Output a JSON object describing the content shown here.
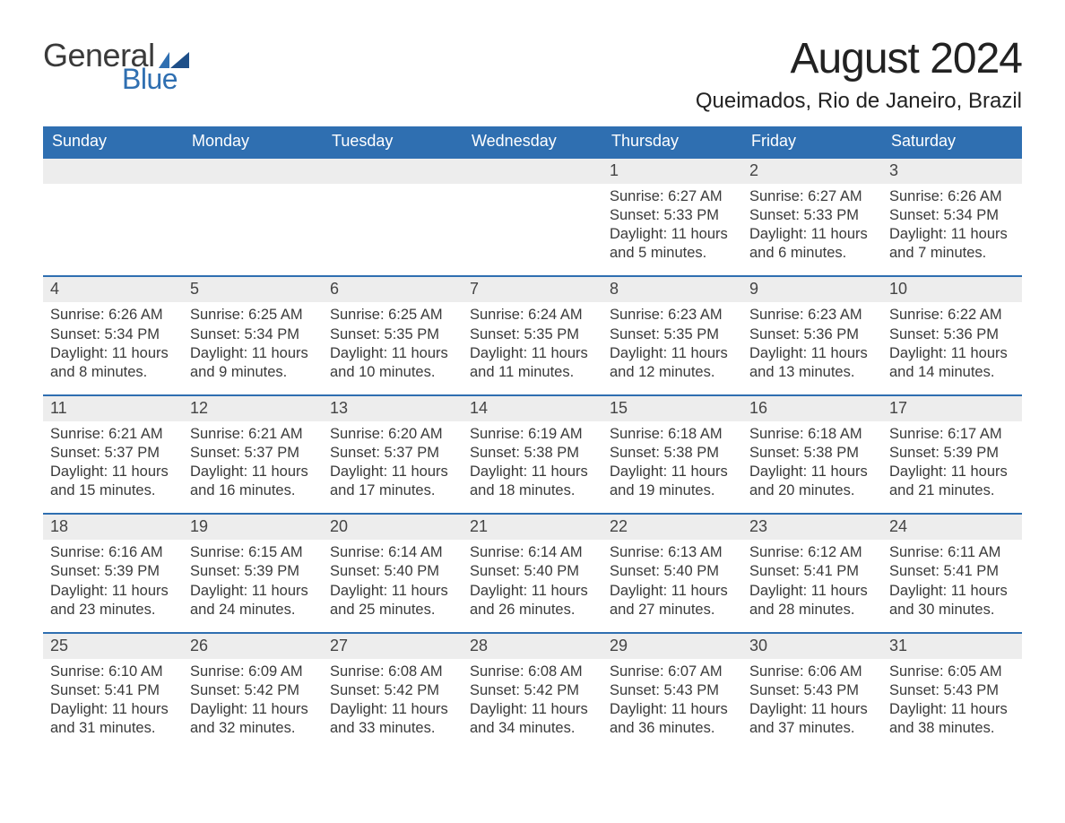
{
  "brand": {
    "word1": "General",
    "word2": "Blue"
  },
  "title": "August 2024",
  "location": "Queimados, Rio de Janeiro, Brazil",
  "weekdays": [
    "Sunday",
    "Monday",
    "Tuesday",
    "Wednesday",
    "Thursday",
    "Friday",
    "Saturday"
  ],
  "colors": {
    "header_bg": "#2f6fb1",
    "header_text": "#ffffff",
    "daynum_bg": "#ededed",
    "daynum_border": "#2f6fb1",
    "body_text": "#3a3a3a",
    "page_bg": "#ffffff"
  },
  "layout": {
    "start_weekday_index": 4,
    "days_in_month": 31,
    "columns": 7
  },
  "days": [
    {
      "n": 1,
      "sunrise": "6:27 AM",
      "sunset": "5:33 PM",
      "daylight": "11 hours and 5 minutes."
    },
    {
      "n": 2,
      "sunrise": "6:27 AM",
      "sunset": "5:33 PM",
      "daylight": "11 hours and 6 minutes."
    },
    {
      "n": 3,
      "sunrise": "6:26 AM",
      "sunset": "5:34 PM",
      "daylight": "11 hours and 7 minutes."
    },
    {
      "n": 4,
      "sunrise": "6:26 AM",
      "sunset": "5:34 PM",
      "daylight": "11 hours and 8 minutes."
    },
    {
      "n": 5,
      "sunrise": "6:25 AM",
      "sunset": "5:34 PM",
      "daylight": "11 hours and 9 minutes."
    },
    {
      "n": 6,
      "sunrise": "6:25 AM",
      "sunset": "5:35 PM",
      "daylight": "11 hours and 10 minutes."
    },
    {
      "n": 7,
      "sunrise": "6:24 AM",
      "sunset": "5:35 PM",
      "daylight": "11 hours and 11 minutes."
    },
    {
      "n": 8,
      "sunrise": "6:23 AM",
      "sunset": "5:35 PM",
      "daylight": "11 hours and 12 minutes."
    },
    {
      "n": 9,
      "sunrise": "6:23 AM",
      "sunset": "5:36 PM",
      "daylight": "11 hours and 13 minutes."
    },
    {
      "n": 10,
      "sunrise": "6:22 AM",
      "sunset": "5:36 PM",
      "daylight": "11 hours and 14 minutes."
    },
    {
      "n": 11,
      "sunrise": "6:21 AM",
      "sunset": "5:37 PM",
      "daylight": "11 hours and 15 minutes."
    },
    {
      "n": 12,
      "sunrise": "6:21 AM",
      "sunset": "5:37 PM",
      "daylight": "11 hours and 16 minutes."
    },
    {
      "n": 13,
      "sunrise": "6:20 AM",
      "sunset": "5:37 PM",
      "daylight": "11 hours and 17 minutes."
    },
    {
      "n": 14,
      "sunrise": "6:19 AM",
      "sunset": "5:38 PM",
      "daylight": "11 hours and 18 minutes."
    },
    {
      "n": 15,
      "sunrise": "6:18 AM",
      "sunset": "5:38 PM",
      "daylight": "11 hours and 19 minutes."
    },
    {
      "n": 16,
      "sunrise": "6:18 AM",
      "sunset": "5:38 PM",
      "daylight": "11 hours and 20 minutes."
    },
    {
      "n": 17,
      "sunrise": "6:17 AM",
      "sunset": "5:39 PM",
      "daylight": "11 hours and 21 minutes."
    },
    {
      "n": 18,
      "sunrise": "6:16 AM",
      "sunset": "5:39 PM",
      "daylight": "11 hours and 23 minutes."
    },
    {
      "n": 19,
      "sunrise": "6:15 AM",
      "sunset": "5:39 PM",
      "daylight": "11 hours and 24 minutes."
    },
    {
      "n": 20,
      "sunrise": "6:14 AM",
      "sunset": "5:40 PM",
      "daylight": "11 hours and 25 minutes."
    },
    {
      "n": 21,
      "sunrise": "6:14 AM",
      "sunset": "5:40 PM",
      "daylight": "11 hours and 26 minutes."
    },
    {
      "n": 22,
      "sunrise": "6:13 AM",
      "sunset": "5:40 PM",
      "daylight": "11 hours and 27 minutes."
    },
    {
      "n": 23,
      "sunrise": "6:12 AM",
      "sunset": "5:41 PM",
      "daylight": "11 hours and 28 minutes."
    },
    {
      "n": 24,
      "sunrise": "6:11 AM",
      "sunset": "5:41 PM",
      "daylight": "11 hours and 30 minutes."
    },
    {
      "n": 25,
      "sunrise": "6:10 AM",
      "sunset": "5:41 PM",
      "daylight": "11 hours and 31 minutes."
    },
    {
      "n": 26,
      "sunrise": "6:09 AM",
      "sunset": "5:42 PM",
      "daylight": "11 hours and 32 minutes."
    },
    {
      "n": 27,
      "sunrise": "6:08 AM",
      "sunset": "5:42 PM",
      "daylight": "11 hours and 33 minutes."
    },
    {
      "n": 28,
      "sunrise": "6:08 AM",
      "sunset": "5:42 PM",
      "daylight": "11 hours and 34 minutes."
    },
    {
      "n": 29,
      "sunrise": "6:07 AM",
      "sunset": "5:43 PM",
      "daylight": "11 hours and 36 minutes."
    },
    {
      "n": 30,
      "sunrise": "6:06 AM",
      "sunset": "5:43 PM",
      "daylight": "11 hours and 37 minutes."
    },
    {
      "n": 31,
      "sunrise": "6:05 AM",
      "sunset": "5:43 PM",
      "daylight": "11 hours and 38 minutes."
    }
  ],
  "labels": {
    "sunrise": "Sunrise: ",
    "sunset": "Sunset: ",
    "daylight": "Daylight: "
  }
}
